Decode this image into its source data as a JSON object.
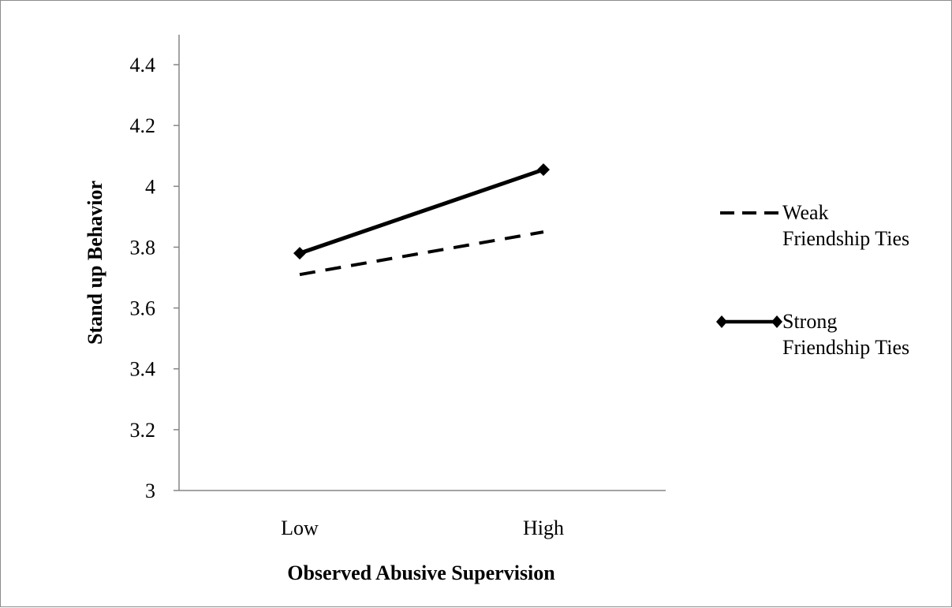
{
  "chart_data": {
    "type": "line",
    "title": "",
    "xlabel": "Observed Abusive Supervision",
    "ylabel": "Stand up Behavior",
    "categories": [
      "Low",
      "High"
    ],
    "ylim": [
      3,
      4.4
    ],
    "yticks": [
      "3",
      "3.2",
      "3.4",
      "3.6",
      "3.8",
      "4",
      "4.2",
      "4.4"
    ],
    "grid": false,
    "legend_position": "right",
    "series": [
      {
        "name": "Weak Friendship Ties",
        "name_lines": [
          "Weak",
          "Friendship Ties"
        ],
        "values": [
          3.71,
          3.85
        ],
        "style": "dashed",
        "marker": "none",
        "color": "#000000"
      },
      {
        "name": "Strong Friendship Ties",
        "name_lines": [
          "Strong",
          "Friendship Ties"
        ],
        "values": [
          3.78,
          4.055
        ],
        "style": "solid",
        "marker": "diamond",
        "color": "#000000"
      }
    ]
  }
}
